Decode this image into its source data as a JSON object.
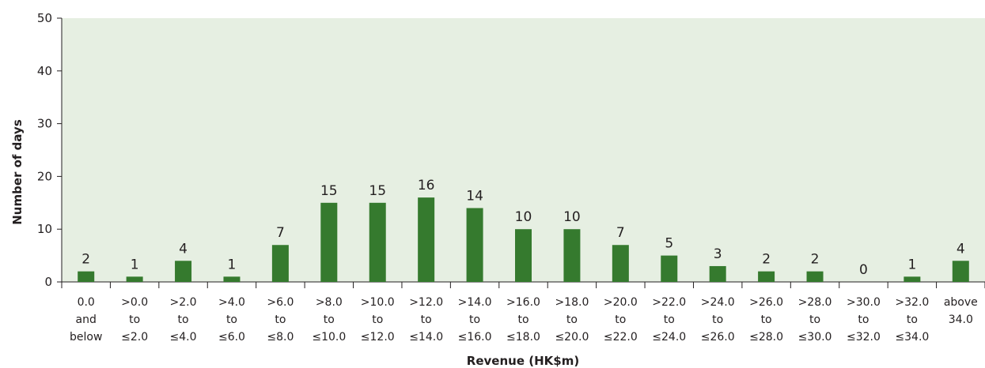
{
  "chart_data": {
    "type": "bar",
    "title": "",
    "xlabel": "Revenue (HK$m)",
    "ylabel": "Number of days",
    "ylim": [
      0,
      50
    ],
    "yticks": [
      0,
      10,
      20,
      30,
      40,
      50
    ],
    "grid": false,
    "categories": [
      [
        "0.0",
        "and",
        "below"
      ],
      [
        ">0.0",
        "to",
        "≤2.0"
      ],
      [
        ">2.0",
        "to",
        "≤4.0"
      ],
      [
        ">4.0",
        "to",
        "≤6.0"
      ],
      [
        ">6.0",
        "to",
        "≤8.0"
      ],
      [
        ">8.0",
        "to",
        "≤10.0"
      ],
      [
        ">10.0",
        "to",
        "≤12.0"
      ],
      [
        ">12.0",
        "to",
        "≤14.0"
      ],
      [
        ">14.0",
        "to",
        "≤16.0"
      ],
      [
        ">16.0",
        "to",
        "≤18.0"
      ],
      [
        ">18.0",
        "to",
        "≤20.0"
      ],
      [
        ">20.0",
        "to",
        "≤22.0"
      ],
      [
        ">22.0",
        "to",
        "≤24.0"
      ],
      [
        ">24.0",
        "to",
        "≤26.0"
      ],
      [
        ">26.0",
        "to",
        "≤28.0"
      ],
      [
        ">28.0",
        "to",
        "≤30.0"
      ],
      [
        ">30.0",
        "to",
        "≤32.0"
      ],
      [
        ">32.0",
        "to",
        "≤34.0"
      ],
      [
        "above",
        "34.0"
      ]
    ],
    "values": [
      2,
      1,
      4,
      1,
      7,
      15,
      15,
      16,
      14,
      10,
      10,
      7,
      5,
      3,
      2,
      2,
      0,
      1,
      4
    ],
    "colors": {
      "bar": "#357a2e",
      "plot_background": "#e6efe2",
      "axis": "#231f20"
    }
  }
}
